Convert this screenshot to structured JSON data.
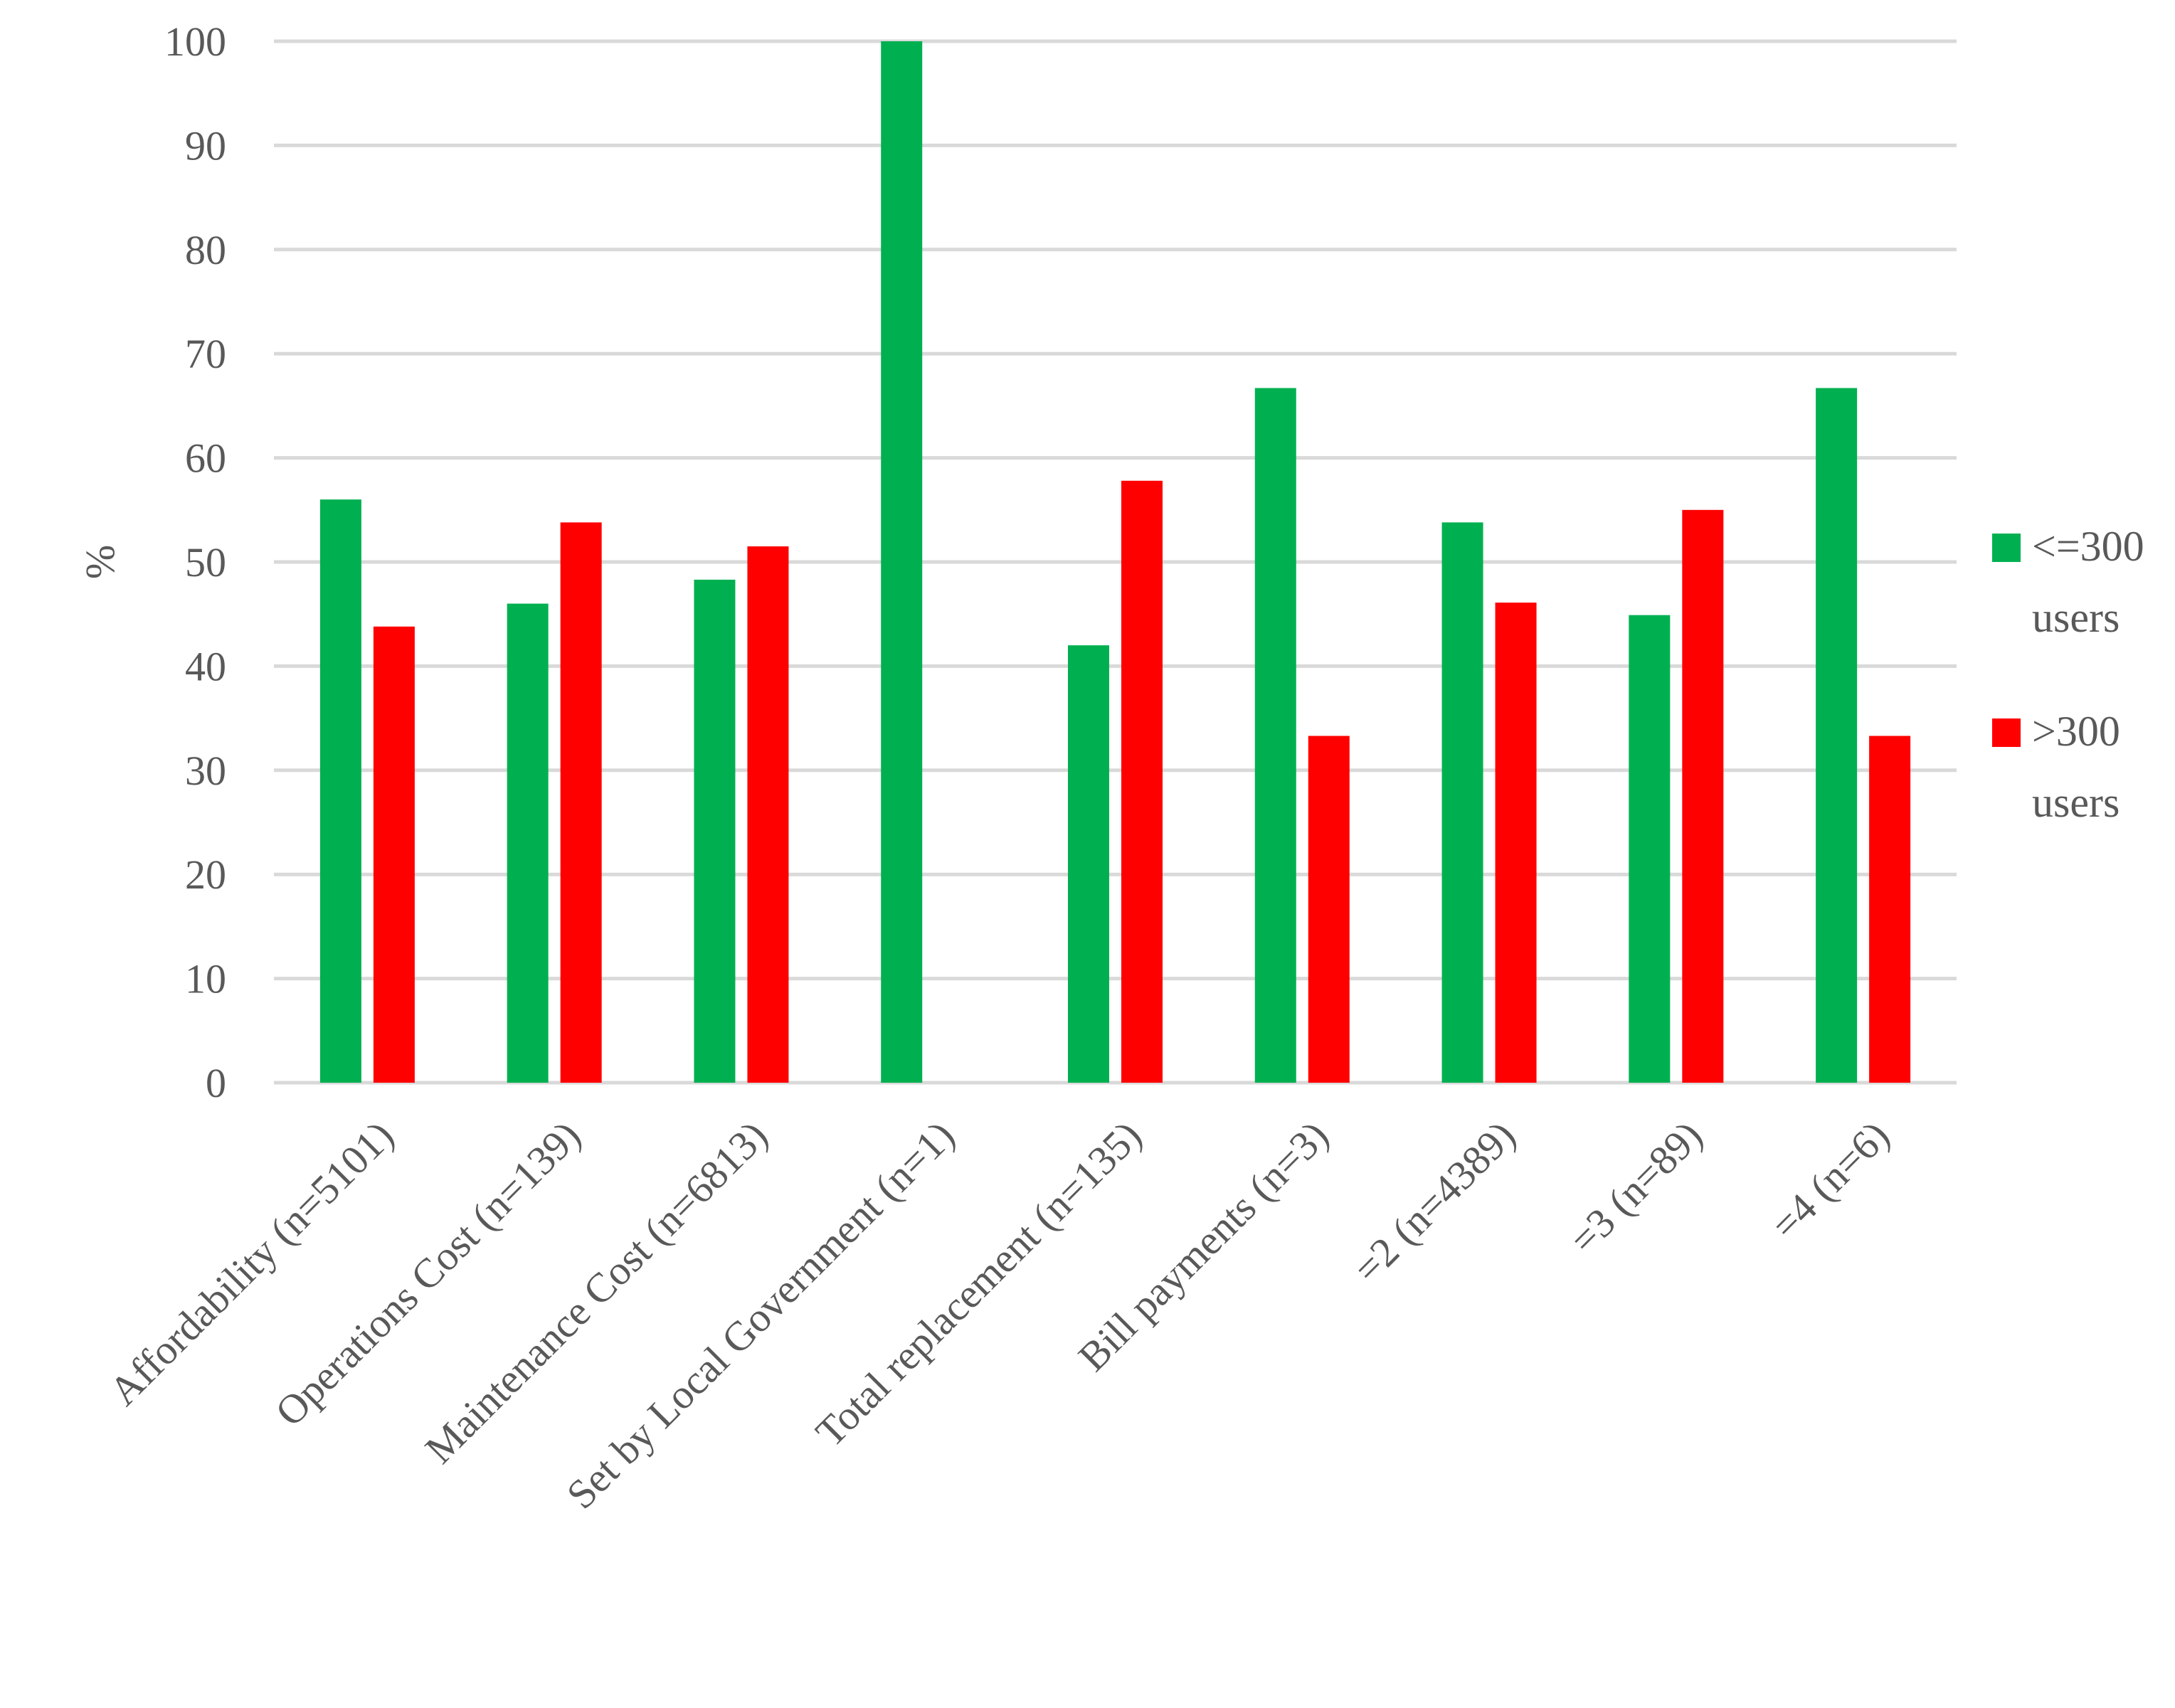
{
  "chart_data": {
    "type": "bar",
    "title": "",
    "xlabel": "",
    "ylabel": "%",
    "ylim": [
      0,
      100
    ],
    "yticks": [
      0,
      10,
      20,
      30,
      40,
      50,
      60,
      70,
      80,
      90,
      100
    ],
    "grid": true,
    "legend_position": "right",
    "categories": [
      "Affordability (n=5101)",
      "Operations Cost (n=139)",
      "Maintenance Cost (n=6813)",
      "Set by Local Government (n=1)",
      "Total replacement (n=135)",
      "Bill payments (n=3)",
      "=2 (n=4389)",
      "=3 (n=89)",
      "=4 (n=6)"
    ],
    "series": [
      {
        "name": "<=300 users",
        "legend_lines": [
          "<=300",
          "users"
        ],
        "color": "#00b050",
        "values": [
          56,
          46,
          48.3,
          100,
          42,
          66.7,
          53.8,
          44.9,
          66.7
        ]
      },
      {
        "name": ">300 users",
        "legend_lines": [
          ">300",
          "users"
        ],
        "color": "#ff0000",
        "values": [
          43.8,
          53.8,
          51.5,
          null,
          57.8,
          33.3,
          46.1,
          55,
          33.3
        ]
      }
    ]
  }
}
